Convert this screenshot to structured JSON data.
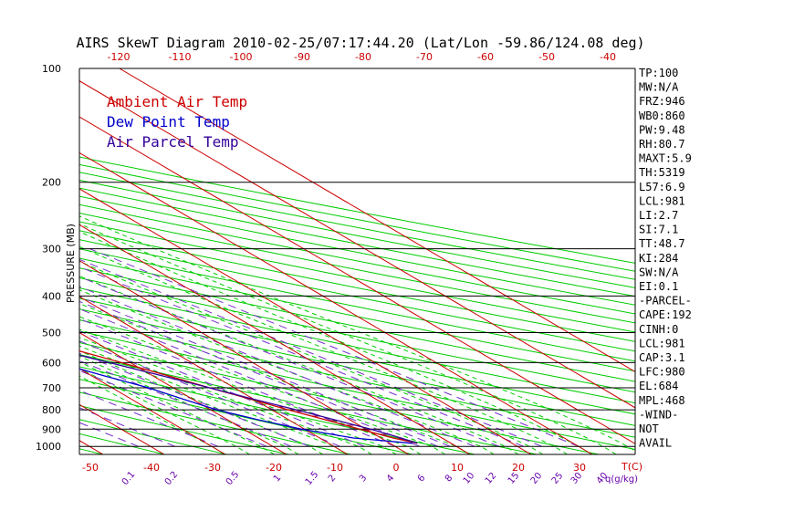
{
  "title": "AIRS SkewT Diagram 2010-02-25/07:17:44.20 (Lat/Lon -59.86/124.08 deg)",
  "colors": {
    "background": "#ffffff",
    "isobar": "#000000",
    "isotherm": "#cc0000",
    "dry_adiabat": "#00cc00",
    "moist_adiabat": "#00cc00",
    "mixing_ratio": "#7733cc",
    "ambient": "#cc0000",
    "dewpoint": "#0000cc",
    "parcel": "#330099",
    "cape_hatch": "#880044"
  },
  "chart_data": {
    "type": "line",
    "title": "AIRS SkewT Diagram 2010-02-25/07:17:44.20 (Lat/Lon -59.86/124.08 deg)",
    "ylabel": "PRESSURE (MB)",
    "xlabel": "T(C)",
    "mixing_ratio_label": "q(g/kg)",
    "ylim": [
      1050,
      100
    ],
    "yscale": "log",
    "pressure_ticks": [
      100,
      200,
      300,
      400,
      500,
      600,
      700,
      800,
      900,
      1000
    ],
    "bottom_temp_ticks": [
      -50,
      -40,
      -30,
      -20,
      -10,
      0,
      10,
      20,
      30
    ],
    "top_temp_ticks": [
      -120,
      -110,
      -100,
      -90,
      -80,
      -70,
      -60,
      -50,
      -40
    ],
    "mixing_ratio_ticks": [
      "0.1",
      "0.2",
      "0.5",
      "1",
      "1.5",
      "2",
      "3",
      "4",
      "6",
      "8",
      "10",
      "12",
      "15",
      "20",
      "25",
      "30",
      "40"
    ],
    "legend": [
      "Ambient Air Temp",
      "Dew Point Temp",
      "Air Parcel Temp"
    ],
    "series": [
      {
        "name": "Ambient Air Temp",
        "pressure": [
          981,
          950,
          900,
          850,
          800,
          750,
          700,
          650,
          600,
          550,
          500,
          450,
          400,
          350,
          300,
          250,
          200,
          180,
          160,
          140,
          120,
          100
        ],
        "temp": [
          4.5,
          2.0,
          -1.0,
          -4.0,
          -7.3,
          -10.5,
          -14.0,
          -17.5,
          -21.5,
          -26.0,
          -31.0,
          -36.5,
          -42.5,
          -48.0,
          -55.0,
          -57.0,
          -57.5,
          -58.5,
          -60.0,
          -62.5,
          -66.0,
          -69.5
        ]
      },
      {
        "name": "Dew Point Temp",
        "pressure": [
          981,
          950,
          900,
          850,
          800,
          750,
          700,
          650,
          600,
          550,
          500,
          450,
          400,
          350,
          300,
          250,
          200,
          180,
          160,
          140,
          120,
          100
        ],
        "temp": [
          3.7,
          -4.5,
          -10.5,
          -15.0,
          -19.0,
          -21.5,
          -24.0,
          -28.0,
          -32.0,
          -35.5,
          -38.5,
          -44.5,
          -51.0,
          -57.0,
          -64.0,
          -72.0,
          -81.0,
          -87.0,
          -93.0,
          -97.0,
          -102.0,
          -106.0
        ]
      },
      {
        "name": "Air Parcel Temp",
        "pressure": [
          981,
          950,
          900,
          850,
          800,
          750,
          700,
          650,
          600,
          550,
          500,
          450,
          400,
          350,
          300,
          250,
          200,
          180,
          160,
          140,
          120,
          100
        ],
        "temp": [
          4.5,
          3.3,
          0.8,
          -2.5,
          -6.0,
          -10.0,
          -14.0,
          -18.5,
          -23.5,
          -29.0,
          -35.0,
          -41.5,
          -48.5,
          -56.0,
          -64.0,
          -73.0,
          -84.0,
          -88.5,
          -93.5,
          -99.0,
          -105.0,
          -113.0
        ]
      }
    ]
  },
  "indices": [
    "TP:100",
    "MW:N/A",
    "FRZ:946",
    "WB0:860",
    "PW:9.48",
    "RH:80.7",
    "MAXT:5.9",
    "TH:5319",
    "L57:6.9",
    "LCL:981",
    "LI:2.7",
    "SI:7.1",
    "TT:48.7",
    "KI:284",
    "SW:N/A",
    "EI:0.1",
    "-PARCEL-",
    "CAPE:192",
    "CINH:0",
    "LCL:981",
    "CAP:3.1",
    "LFC:980",
    "EL:684",
    "MPL:468",
    "-WIND-",
    "NOT",
    "AVAIL"
  ]
}
